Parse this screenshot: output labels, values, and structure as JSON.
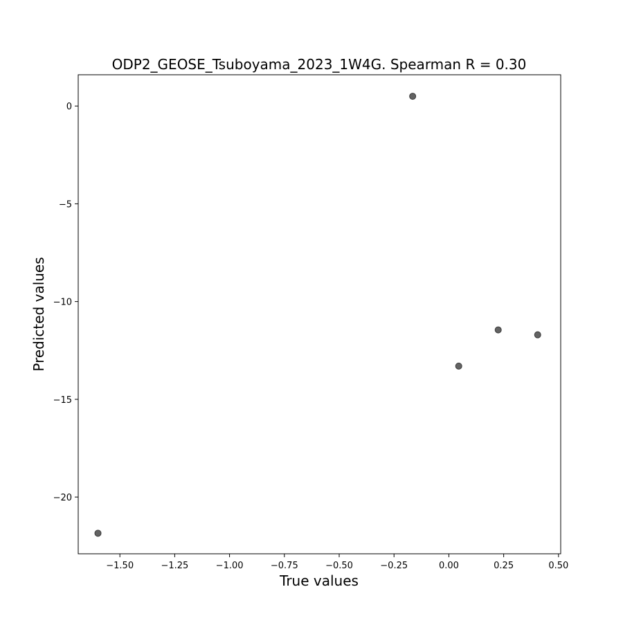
{
  "chart_data": {
    "type": "scatter",
    "title": "ODP2_GEOSE_Tsuboyama_2023_1W4G. Spearman R = 0.30",
    "xlabel": "True values",
    "ylabel": "Predicted values",
    "xlim": [
      -1.69,
      0.51
    ],
    "ylim": [
      -22.9,
      1.6
    ],
    "xticks": [
      -1.5,
      -1.25,
      -1.0,
      -0.75,
      -0.5,
      -0.25,
      0.0,
      0.25,
      0.5
    ],
    "xtick_labels": [
      "−1.50",
      "−1.25",
      "−1.00",
      "−0.75",
      "−0.50",
      "−0.25",
      "0.00",
      "0.25",
      "0.50"
    ],
    "yticks": [
      0,
      -5,
      -10,
      -15,
      -20
    ],
    "ytick_labels": [
      "0",
      "−5",
      "−10",
      "−15",
      "−20"
    ],
    "grid": false,
    "marker_color": "#636363",
    "marker_edge_color": "#3a3a3a",
    "points": [
      {
        "x": -1.6,
        "y": -21.85
      },
      {
        "x": -0.165,
        "y": 0.5
      },
      {
        "x": 0.045,
        "y": -13.3
      },
      {
        "x": 0.225,
        "y": -11.45
      },
      {
        "x": 0.405,
        "y": -11.7
      }
    ]
  }
}
